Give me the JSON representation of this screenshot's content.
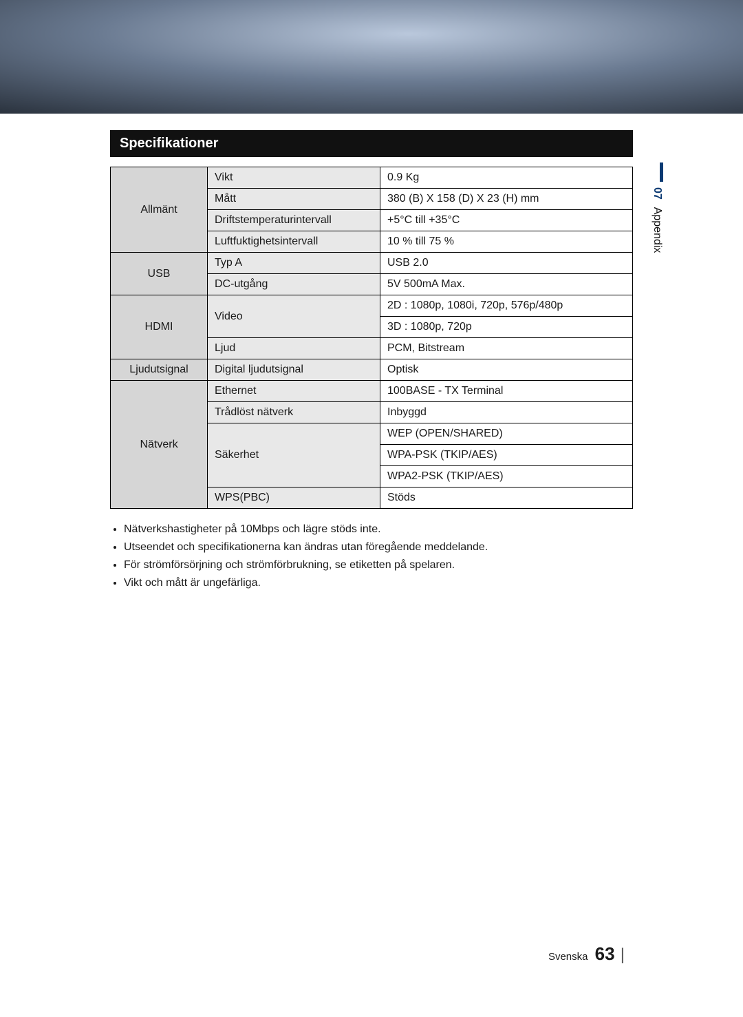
{
  "section_title": "Specifikationer",
  "sidetab": {
    "num": "07",
    "label": "Appendix"
  },
  "footer": {
    "lang": "Svenska",
    "pagenum": "63"
  },
  "categories": [
    {
      "name": "Allmänt",
      "rows": [
        {
          "param": "Vikt",
          "value": "0.9 Kg"
        },
        {
          "param": "Mått",
          "value": "380 (B) X 158 (D) X 23 (H) mm"
        },
        {
          "param": "Driftstemperaturintervall",
          "value": "+5°C till +35°C"
        },
        {
          "param": "Luftfuktighetsintervall",
          "value": "10 % till 75 %"
        }
      ]
    },
    {
      "name": "USB",
      "rows": [
        {
          "param": "Typ A",
          "value": "USB 2.0"
        },
        {
          "param": "DC-utgång",
          "value": "5V 500mA Max."
        }
      ]
    },
    {
      "name": "HDMI",
      "rows": [
        {
          "param": "Video",
          "value_lines": [
            "2D : 1080p, 1080i, 720p, 576p/480p",
            "3D : 1080p, 720p"
          ]
        },
        {
          "param": "Ljud",
          "value": "PCM, Bitstream"
        }
      ]
    },
    {
      "name": "Ljudutsignal",
      "rows": [
        {
          "param": "Digital ljudutsignal",
          "value": "Optisk"
        }
      ]
    },
    {
      "name": "Nätverk",
      "rows": [
        {
          "param": "Ethernet",
          "value": "100BASE - TX Terminal"
        },
        {
          "param": "Trådlöst nätverk",
          "value": "Inbyggd"
        },
        {
          "param": "Säkerhet",
          "value_lines": [
            "WEP (OPEN/SHARED)",
            "WPA-PSK (TKIP/AES)",
            "WPA2-PSK (TKIP/AES)"
          ]
        },
        {
          "param": "WPS(PBC)",
          "value": "Stöds"
        }
      ]
    }
  ],
  "notes": [
    "Nätverkshastigheter på 10Mbps och lägre stöds inte.",
    "Utseendet och specifikationerna kan ändras utan föregående meddelande.",
    "För strömförsörjning och strömförbrukning, se etiketten på spelaren.",
    "Vikt och mått är ungefärliga."
  ]
}
